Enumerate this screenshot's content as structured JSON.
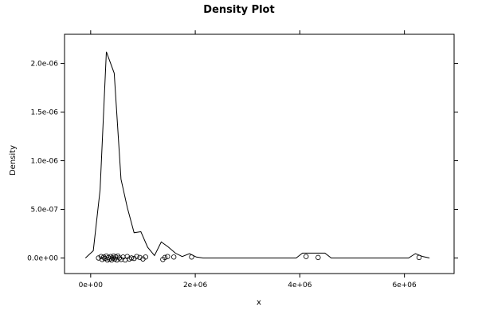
{
  "chart_data": {
    "type": "line",
    "title": "Density Plot",
    "xlabel": "x",
    "ylabel": "Density",
    "xlim": [
      -500000,
      6950000
    ],
    "ylim": [
      -1.6e-07,
      2.3e-06
    ],
    "x_ticks": [
      {
        "value": 0,
        "label": "0e+00"
      },
      {
        "value": 2000000,
        "label": "2e+06"
      },
      {
        "value": 4000000,
        "label": "4e+06"
      },
      {
        "value": 6000000,
        "label": "6e+06"
      }
    ],
    "y_ticks": [
      {
        "value": 0,
        "label": "0.0e+00"
      },
      {
        "value": 5e-07,
        "label": "5.0e-07"
      },
      {
        "value": 1e-06,
        "label": "1.0e-06"
      },
      {
        "value": 1.5e-06,
        "label": "1.5e-06"
      },
      {
        "value": 2e-06,
        "label": "2.0e-06"
      }
    ],
    "grid": false,
    "series": [
      {
        "x": [
          -100000,
          50000,
          180000,
          300000,
          450000,
          580000,
          700000,
          830000,
          960000,
          1090000,
          1220000,
          1350000,
          1480000,
          1620000,
          1750000,
          1890000,
          2020000,
          2150000,
          2300000,
          2500000,
          3000000,
          3500000,
          3930000,
          4050000,
          4200000,
          4340000,
          4480000,
          4600000,
          5000000,
          5500000,
          6080000,
          6210000,
          6350000,
          6480000
        ],
        "y": [
          0,
          7.5e-08,
          7e-07,
          2.12e-06,
          1.9e-06,
          8.1e-07,
          5.2e-07,
          2.6e-07,
          2.7e-07,
          1.1e-07,
          2.5e-08,
          1.65e-07,
          1.15e-07,
          5e-08,
          1.5e-08,
          4.5e-08,
          1e-08,
          0,
          0,
          0,
          0,
          0,
          0,
          5e-08,
          5e-08,
          5e-08,
          5e-08,
          0,
          0,
          0,
          0,
          4.5e-08,
          1.5e-08,
          0
        ]
      }
    ],
    "rug_points": [
      {
        "x": 150000,
        "y": 0
      },
      {
        "x": 200000,
        "y": 1.5e-08
      },
      {
        "x": 220000,
        "y": -1.5e-08
      },
      {
        "x": 250000,
        "y": 1e-08
      },
      {
        "x": 270000,
        "y": -5e-09
      },
      {
        "x": 300000,
        "y": 2e-08
      },
      {
        "x": 320000,
        "y": -2e-08
      },
      {
        "x": 340000,
        "y": 5e-09
      },
      {
        "x": 360000,
        "y": -1e-08
      },
      {
        "x": 380000,
        "y": 1.5e-08
      },
      {
        "x": 400000,
        "y": -2e-08
      },
      {
        "x": 420000,
        "y": 0
      },
      {
        "x": 440000,
        "y": 2e-08
      },
      {
        "x": 460000,
        "y": -1e-08
      },
      {
        "x": 480000,
        "y": 1e-08
      },
      {
        "x": 500000,
        "y": -2e-08
      },
      {
        "x": 520000,
        "y": 2e-08
      },
      {
        "x": 550000,
        "y": 0
      },
      {
        "x": 580000,
        "y": -1.5e-08
      },
      {
        "x": 620000,
        "y": 1e-08
      },
      {
        "x": 660000,
        "y": -2e-08
      },
      {
        "x": 700000,
        "y": 1.5e-08
      },
      {
        "x": 740000,
        "y": -1e-08
      },
      {
        "x": 780000,
        "y": 0
      },
      {
        "x": 830000,
        "y": -5e-09
      },
      {
        "x": 880000,
        "y": 1.5e-08
      },
      {
        "x": 940000,
        "y": 5e-09
      },
      {
        "x": 1000000,
        "y": -1e-08
      },
      {
        "x": 1050000,
        "y": 1e-08
      },
      {
        "x": 1380000,
        "y": -1.5e-08
      },
      {
        "x": 1420000,
        "y": 5e-09
      },
      {
        "x": 1470000,
        "y": 1.5e-08
      },
      {
        "x": 1590000,
        "y": 1e-08
      },
      {
        "x": 1930000,
        "y": 1e-08
      },
      {
        "x": 4120000,
        "y": 1.5e-08
      },
      {
        "x": 4350000,
        "y": 5e-09
      },
      {
        "x": 6280000,
        "y": 5e-09
      }
    ]
  }
}
